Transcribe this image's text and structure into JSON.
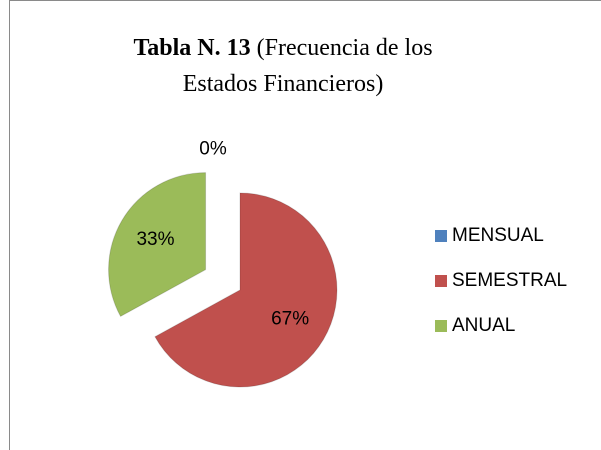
{
  "chart_data": {
    "type": "pie",
    "title": "Tabla N. 13",
    "subtitle": "(Frecuencia de los Estados Financieros)",
    "categories": [
      "MENSUAL",
      "SEMESTRAL",
      "ANUAL"
    ],
    "values": [
      0,
      67,
      33
    ],
    "value_labels": [
      "0%",
      "67%",
      "33%"
    ],
    "colors": [
      "#4f81bd",
      "#c0504d",
      "#9bbb59"
    ],
    "legend": "right"
  }
}
